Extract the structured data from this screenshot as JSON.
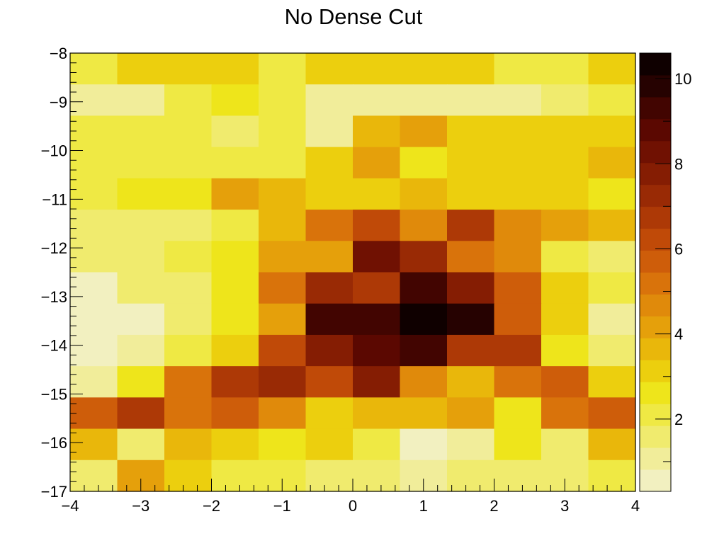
{
  "chart_data": {
    "type": "heatmap",
    "title": "No Dense Cut",
    "x_range": [
      -4,
      4
    ],
    "y_range": [
      -17,
      -8
    ],
    "x_bins": 12,
    "y_bins": 14,
    "x_ticks": [
      -4,
      -3,
      -2,
      -1,
      0,
      1,
      2,
      3,
      4
    ],
    "y_ticks": [
      -8,
      -9,
      -10,
      -11,
      -12,
      -13,
      -14,
      -15,
      -16,
      -17
    ],
    "colorbar": {
      "range": [
        0.3,
        10.6
      ],
      "levels": 20,
      "ticks": [
        2,
        4,
        6,
        8,
        10
      ],
      "palette": [
        "#f2f0c0",
        "#f1ed9a",
        "#f0eb6e",
        "#efe944",
        "#eee51b",
        "#eccf0e",
        "#e9b70b",
        "#e5a00b",
        "#e08a0b",
        "#d9730b",
        "#ce5d0a",
        "#c04a08",
        "#ad3906",
        "#992a05",
        "#851d03",
        "#701102",
        "#5b0801",
        "#420501",
        "#260201",
        "#0f0000"
      ]
    },
    "values": [
      [
        2,
        3,
        3,
        3,
        2,
        3,
        3,
        3,
        3,
        2,
        2,
        3
      ],
      [
        1.3,
        1.3,
        2,
        2.5,
        2.2,
        1,
        1.3,
        1.3,
        1.3,
        1.3,
        1.8,
        2.2
      ],
      [
        2,
        2,
        2,
        1.8,
        2,
        1.3,
        3.5,
        4.3,
        3.3,
        3.2,
        3.1,
        3.2
      ],
      [
        1.9,
        2.2,
        2.2,
        2.2,
        2.3,
        3.3,
        4.2,
        2.8,
        3.3,
        3.3,
        3.3,
        3.4
      ],
      [
        2.2,
        2.5,
        2.8,
        4,
        3.5,
        2.9,
        2.9,
        3.6,
        2.9,
        3.3,
        2.9,
        2.6
      ],
      [
        1.5,
        1.5,
        1.7,
        2.3,
        3.5,
        5.3,
        6.2,
        4.8,
        6.7,
        4.8,
        4,
        3.5
      ],
      [
        1.5,
        1.8,
        2.2,
        2.8,
        4,
        4,
        8.5,
        7.5,
        5.3,
        4.8,
        2.3,
        1.8
      ],
      [
        0.6,
        1.4,
        1.4,
        2.4,
        5.2,
        7.4,
        6.7,
        9.2,
        8,
        5.8,
        3.3,
        2
      ],
      [
        0.6,
        0.6,
        1.7,
        2.8,
        4,
        9.3,
        9.3,
        10.6,
        9.8,
        5.8,
        3.3,
        1.2
      ],
      [
        0.6,
        1.2,
        2.2,
        3.2,
        6.3,
        8,
        8.6,
        9.2,
        6.8,
        6.8,
        2.8,
        1.6
      ],
      [
        1.2,
        2.4,
        5.4,
        6.6,
        7.3,
        6.3,
        7.8,
        4.6,
        3.9,
        5.2,
        5.7,
        3.3
      ],
      [
        5.8,
        6.8,
        5.2,
        5.8,
        4.6,
        2.9,
        3.4,
        3.4,
        4,
        2.8,
        5.3,
        5.8
      ],
      [
        3.4,
        1.6,
        3.4,
        2.9,
        2.4,
        3.1,
        2.2,
        0.6,
        1.1,
        2.5,
        1.8,
        3.4
      ],
      [
        1.7,
        4,
        3.2,
        2.3,
        2.3,
        1.4,
        1.4,
        1,
        1.4,
        1.8,
        1.8,
        1.9
      ]
    ]
  }
}
